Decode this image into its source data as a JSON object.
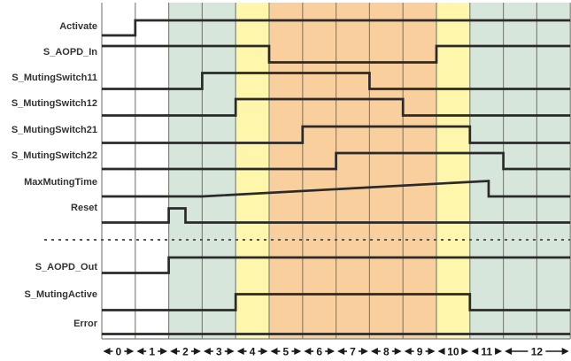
{
  "diagram": {
    "type": "timing-diagram",
    "description_note": "",
    "signals": [
      {
        "name": "Activate",
        "wave": [
          [
            0,
            "L"
          ],
          [
            1,
            "H"
          ]
        ]
      },
      {
        "name": "S_AOPD_In",
        "wave": [
          [
            0,
            "H"
          ],
          [
            5,
            "L"
          ],
          [
            10,
            "H"
          ]
        ]
      },
      {
        "name": "S_MutingSwitch11",
        "wave": [
          [
            0,
            "L"
          ],
          [
            3,
            "H"
          ],
          [
            8,
            "L"
          ]
        ]
      },
      {
        "name": "S_MutingSwitch12",
        "wave": [
          [
            0,
            "L"
          ],
          [
            4,
            "H"
          ],
          [
            9,
            "L"
          ]
        ]
      },
      {
        "name": "S_MutingSwitch21",
        "wave": [
          [
            0,
            "L"
          ],
          [
            6,
            "H"
          ],
          [
            11,
            "L"
          ]
        ]
      },
      {
        "name": "S_MutingSwitch22",
        "wave": [
          [
            0,
            "L"
          ],
          [
            7,
            "H"
          ],
          [
            12,
            "L"
          ]
        ]
      },
      {
        "name": "MaxMutingTime",
        "wave": "ramp",
        "ramp": {
          "flat_until": 3,
          "peak_at": 11.56
        }
      },
      {
        "name": "Reset",
        "wave": [
          [
            0,
            "L"
          ],
          [
            2,
            "H"
          ],
          [
            2.5,
            "L"
          ]
        ]
      },
      {
        "name": "S_AOPD_Out",
        "wave": [
          [
            0,
            "L"
          ],
          [
            2,
            "H"
          ]
        ]
      },
      {
        "name": "S_MutingActive",
        "wave": [
          [
            0,
            "L"
          ],
          [
            4,
            "H"
          ],
          [
            11,
            "L"
          ]
        ]
      },
      {
        "name": "Error",
        "wave": [
          [
            0,
            "L"
          ]
        ]
      }
    ],
    "separator_after_index": 7,
    "time_segments": [
      {
        "label": "0",
        "from": 0,
        "to": 1
      },
      {
        "label": "1",
        "from": 1,
        "to": 2
      },
      {
        "label": "2",
        "from": 2,
        "to": 3
      },
      {
        "label": "3",
        "from": 3,
        "to": 4
      },
      {
        "label": "4",
        "from": 4,
        "to": 5
      },
      {
        "label": "5",
        "from": 5,
        "to": 6
      },
      {
        "label": "6",
        "from": 6,
        "to": 7
      },
      {
        "label": "7",
        "from": 7,
        "to": 8
      },
      {
        "label": "8",
        "from": 8,
        "to": 9
      },
      {
        "label": "9",
        "from": 9,
        "to": 10
      },
      {
        "label": "10",
        "from": 10,
        "to": 11
      },
      {
        "label": "11",
        "from": 11,
        "to": 12
      },
      {
        "label": "12",
        "from": 12,
        "to": 14
      }
    ],
    "phase_regions": [
      {
        "from": 0,
        "to": 2,
        "color_key": "white"
      },
      {
        "from": 2,
        "to": 4,
        "color_key": "green"
      },
      {
        "from": 4,
        "to": 5,
        "color_key": "yellow"
      },
      {
        "from": 5,
        "to": 10,
        "color_key": "orange"
      },
      {
        "from": 10,
        "to": 11,
        "color_key": "yellow"
      },
      {
        "from": 11,
        "to": 14,
        "color_key": "green"
      }
    ],
    "colors": {
      "white": "#ffffff",
      "green": "#d7e6da",
      "yellow": "#fdf6ab",
      "orange": "#f8cf9d",
      "grid": "#7f857a",
      "signal": "#2a2a2a",
      "dotted": "#555555",
      "text": "#333333"
    },
    "axis_arrows": {
      "left": "◄",
      "right": "►"
    }
  }
}
